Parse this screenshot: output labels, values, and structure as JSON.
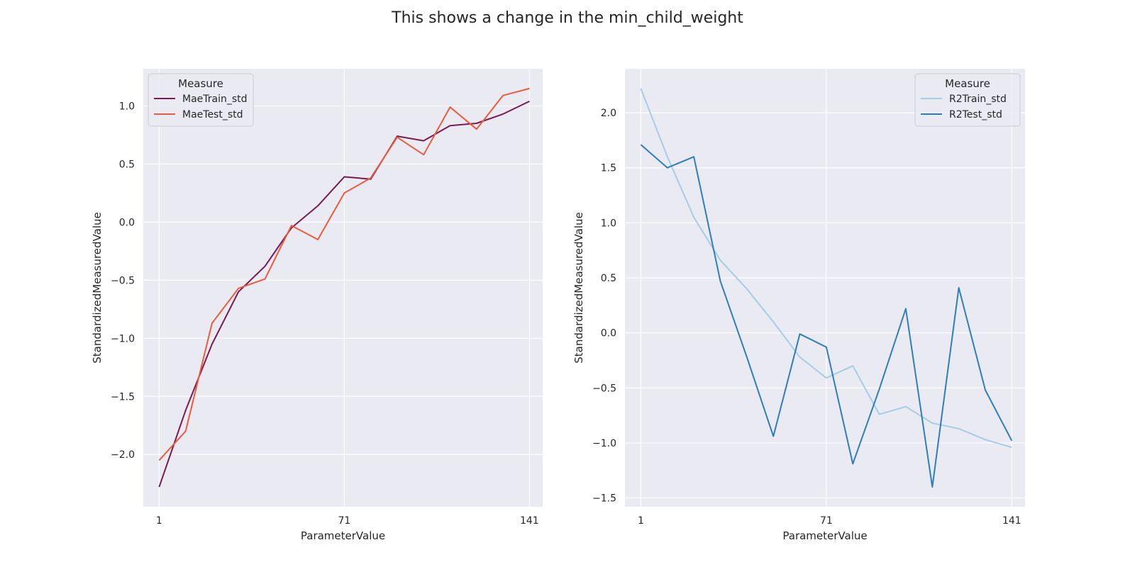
{
  "figure": {
    "title": "This shows a change in the min_child_weight"
  },
  "chart_data": [
    {
      "type": "line",
      "xlabel": "ParameterValue",
      "ylabel": "StandardizedMeasuredValue",
      "xlim": [
        -5,
        146
      ],
      "ylim": [
        -2.45,
        1.32
      ],
      "xticks": [
        1,
        71,
        141
      ],
      "yticks": [
        -2.0,
        -1.5,
        -1.0,
        -0.5,
        0.0,
        0.5,
        1.0
      ],
      "grid": true,
      "legend": {
        "title": "Measure",
        "position": "upper-left"
      },
      "x": [
        1,
        11,
        21,
        31,
        41,
        51,
        61,
        71,
        81,
        91,
        101,
        111,
        121,
        131,
        141
      ],
      "series": [
        {
          "name": "MaeTrain_std",
          "color": "#7a1a52",
          "values": [
            -2.28,
            -1.62,
            -1.05,
            -0.6,
            -0.38,
            -0.05,
            0.14,
            0.39,
            0.37,
            0.74,
            0.7,
            0.83,
            0.85,
            0.93,
            1.04
          ]
        },
        {
          "name": "MaeTest_std",
          "color": "#ec5a3d",
          "values": [
            -2.05,
            -1.8,
            -0.87,
            -0.57,
            -0.49,
            -0.03,
            -0.15,
            0.25,
            0.38,
            0.73,
            0.58,
            0.99,
            0.8,
            1.09,
            1.15
          ]
        }
      ]
    },
    {
      "type": "line",
      "xlabel": "ParameterValue",
      "ylabel": "StandardizedMeasuredValue",
      "xlim": [
        -5,
        146
      ],
      "ylim": [
        -1.58,
        2.4
      ],
      "xticks": [
        1,
        71,
        141
      ],
      "yticks": [
        -1.5,
        -1.0,
        -0.5,
        0.0,
        0.5,
        1.0,
        1.5,
        2.0
      ],
      "grid": true,
      "legend": {
        "title": "Measure",
        "position": "upper-right"
      },
      "x": [
        1,
        11,
        21,
        31,
        41,
        51,
        61,
        71,
        81,
        91,
        101,
        111,
        121,
        131,
        141
      ],
      "series": [
        {
          "name": "R2Train_std",
          "color": "#a6cde6",
          "values": [
            2.22,
            1.6,
            1.05,
            0.66,
            0.4,
            0.1,
            -0.22,
            -0.41,
            -0.3,
            -0.74,
            -0.67,
            -0.82,
            -0.87,
            -0.97,
            -1.04
          ]
        },
        {
          "name": "R2Test_std",
          "color": "#2e7ebc",
          "values": [
            1.71,
            1.5,
            1.6,
            0.47,
            -0.22,
            -0.94,
            -0.01,
            -0.13,
            -1.19,
            -0.51,
            0.22,
            -1.4,
            0.41,
            -0.52,
            -0.98
          ]
        }
      ]
    }
  ]
}
